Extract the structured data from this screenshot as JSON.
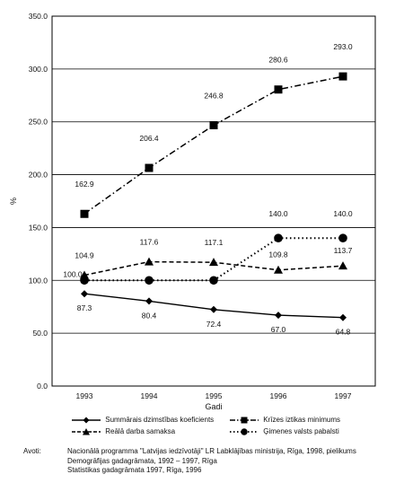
{
  "chart_data": {
    "type": "line",
    "xlabel": "Gadi",
    "ylabel": "%",
    "categories": [
      "1993",
      "1994",
      "1995",
      "1996",
      "1997"
    ],
    "ylim": [
      0,
      350
    ],
    "yticks": [
      "0.0",
      "50.0",
      "100.0",
      "150.0",
      "200.0",
      "250.0",
      "300.0",
      "350.0"
    ],
    "grid": "horizontal",
    "series": [
      {
        "name": "Summārais dzimstības koeficients",
        "marker": "diamond",
        "line": "solid",
        "values": [
          87.3,
          80.4,
          72.4,
          67.0,
          64.8
        ],
        "labels": [
          "87.3",
          "80.4",
          "72.4",
          "67.0",
          "64.8"
        ]
      },
      {
        "name": "Krīzes iztikas minimums",
        "marker": "square",
        "line": "dash-dot",
        "values": [
          162.9,
          206.4,
          246.8,
          280.6,
          293.0
        ],
        "labels": [
          "162.9",
          "206.4",
          "246.8",
          "280.6",
          "293.0"
        ]
      },
      {
        "name": "Reālā darba samaksa",
        "marker": "triangle",
        "line": "dashed",
        "values": [
          104.9,
          117.6,
          117.1,
          109.8,
          113.7
        ],
        "labels": [
          "104.9",
          "117.6",
          "117.1",
          "109.8",
          "113.7"
        ]
      },
      {
        "name": "Ģimenes valsts pabalsti",
        "marker": "circle",
        "line": "dotted",
        "values": [
          100.0,
          100.0,
          100.0,
          140.0,
          140.0
        ],
        "labels": [
          "100.0",
          "",
          "",
          "140.0",
          "140.0"
        ]
      }
    ]
  },
  "sources": {
    "label": "Avoti:",
    "lines": [
      "Nacionālā programma \"Latvijas iedzīvotāji\" LR Labklājības ministrija, Rīga, 1998, pielikums",
      "Demogrāfijas gadagrāmata, 1992 – 1997, Rīga",
      "Statistikas gadagrāmata 1997, Rīga, 1996"
    ]
  }
}
